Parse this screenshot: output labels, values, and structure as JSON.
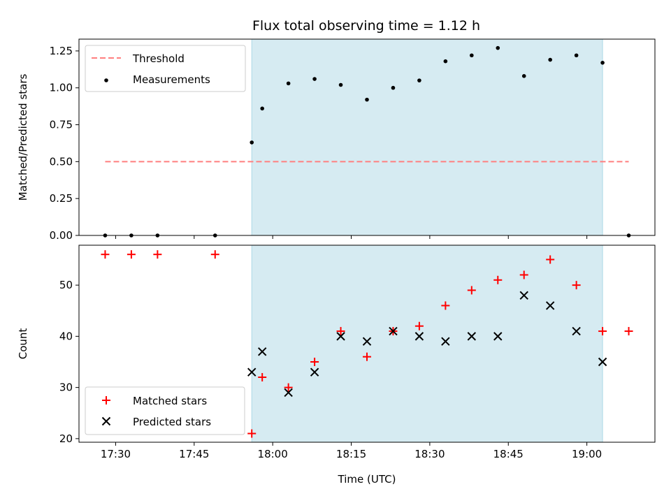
{
  "title": "Flux total observing time = 1.12 h",
  "colors": {
    "shade": "#add8e6",
    "threshold": "#ff7f7f",
    "measurement": "#000000",
    "matched": "#ff0000",
    "predicted": "#000000"
  },
  "chart_data": [
    {
      "type": "scatter",
      "ylabel": "Matched/Predicted stars",
      "ylim": [
        0,
        1.33
      ],
      "yticks": [
        0,
        0.25,
        0.5,
        0.75,
        1.0,
        1.25
      ],
      "ytick_labels": [
        "0.00",
        "0.25",
        "0.50",
        "0.75",
        "1.00",
        "1.25"
      ],
      "legend_position": "top-left",
      "shaded_interval": [
        "17:56",
        "19:03"
      ],
      "threshold": {
        "name": "Threshold",
        "value": 0.5,
        "x_range": [
          "17:28",
          "19:08"
        ]
      },
      "series": [
        {
          "name": "Measurements",
          "x": [
            "17:28",
            "17:33",
            "17:38",
            "17:49",
            "17:56",
            "17:58",
            "18:03",
            "18:08",
            "18:13",
            "18:18",
            "18:23",
            "18:28",
            "18:33",
            "18:38",
            "18:43",
            "18:48",
            "18:53",
            "18:58",
            "19:03",
            "19:08"
          ],
          "y": [
            0.0,
            0.0,
            0.0,
            0.0,
            0.63,
            0.86,
            1.03,
            1.06,
            1.02,
            0.92,
            1.0,
            1.05,
            1.18,
            1.22,
            1.27,
            1.08,
            1.19,
            1.22,
            1.17,
            0.0
          ]
        }
      ]
    },
    {
      "type": "scatter",
      "xlabel": "Time (UTC)",
      "ylabel": "Count",
      "ylim": [
        19.3,
        57.8
      ],
      "yticks": [
        20,
        30,
        40,
        50
      ],
      "ytick_labels": [
        "20",
        "30",
        "40",
        "50"
      ],
      "xlim": [
        "17:23",
        "19:13"
      ],
      "xticks": [
        "17:30",
        "17:45",
        "18:00",
        "18:15",
        "18:30",
        "18:45",
        "19:00"
      ],
      "xtick_labels": [
        "17:30",
        "17:45",
        "18:00",
        "18:15",
        "18:30",
        "18:45",
        "19:00"
      ],
      "legend_position": "bottom-left",
      "shaded_interval": [
        "17:56",
        "19:03"
      ],
      "series": [
        {
          "name": "Matched stars",
          "marker": "+",
          "x": [
            "17:28",
            "17:33",
            "17:38",
            "17:49",
            "17:56",
            "17:58",
            "18:03",
            "18:08",
            "18:13",
            "18:18",
            "18:23",
            "18:28",
            "18:33",
            "18:38",
            "18:43",
            "18:48",
            "18:53",
            "18:58",
            "19:03",
            "19:08"
          ],
          "y": [
            56,
            56,
            56,
            56,
            21,
            32,
            30,
            35,
            41,
            36,
            41,
            42,
            46,
            49,
            51,
            52,
            55,
            50,
            41,
            41
          ]
        },
        {
          "name": "Predicted stars",
          "marker": "x",
          "x": [
            "17:56",
            "17:58",
            "18:03",
            "18:08",
            "18:13",
            "18:18",
            "18:23",
            "18:28",
            "18:33",
            "18:38",
            "18:43",
            "18:48",
            "18:53",
            "18:58",
            "19:03"
          ],
          "y": [
            33,
            37,
            29,
            33,
            40,
            39,
            41,
            40,
            39,
            40,
            40,
            48,
            46,
            41,
            35
          ]
        }
      ]
    }
  ]
}
